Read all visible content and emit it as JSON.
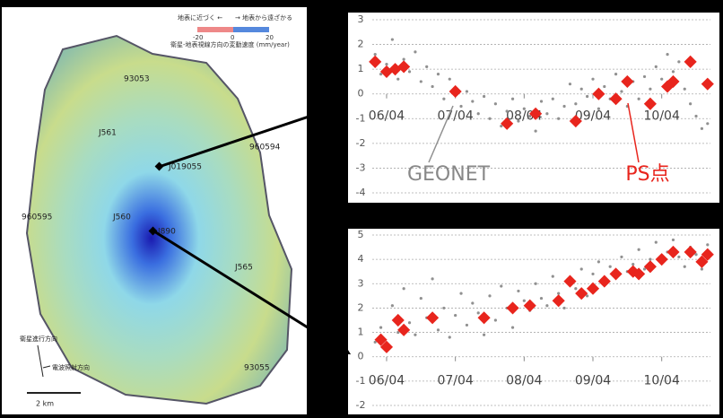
{
  "map": {
    "legend_left": "地表に近づく ←",
    "legend_right": "→ 地表から遠ざかる",
    "scale_min": "-20",
    "scale_mid": "0",
    "scale_max": "20",
    "legend_caption": "衛星-地表視線方向の変動速度 (mm/year)",
    "stations": [
      "93053",
      "J561",
      "960594",
      "J019055",
      "960595",
      "J560",
      "J890",
      "J565",
      "93055"
    ],
    "flight_direction": "衛星進行方向",
    "look_direction": "電波照射方向",
    "scale_bar": "2 km"
  },
  "chart_data": [
    {
      "type": "scatter",
      "xlim": [
        -2.5,
        56.5
      ],
      "ylim": [
        -4,
        3
      ],
      "xticks": [
        {
          "value": 0,
          "label": "06/04"
        },
        {
          "value": 12,
          "label": "07/04"
        },
        {
          "value": 24,
          "label": "08/04"
        },
        {
          "value": 36,
          "label": "09/04"
        },
        {
          "value": 48,
          "label": "10/04"
        }
      ],
      "yticks": [
        -4,
        -3,
        -2,
        -1,
        0,
        1,
        2,
        3
      ],
      "grid": true,
      "series": [
        {
          "name": "GEONET",
          "color": "#909090",
          "x": [
            -2,
            -1,
            0,
            1,
            2,
            3,
            4,
            5,
            6,
            7,
            8,
            9,
            10,
            11,
            12,
            13,
            14,
            15,
            16,
            17,
            18,
            19,
            20,
            21,
            22,
            23,
            24,
            25,
            26,
            27,
            28,
            29,
            30,
            31,
            32,
            33,
            34,
            35,
            36,
            37,
            38,
            39,
            40,
            41,
            42,
            43,
            44,
            45,
            46,
            47,
            48,
            49,
            50,
            51,
            52,
            53,
            54,
            55,
            56
          ],
          "values": [
            1.6,
            0.8,
            1.2,
            2.2,
            0.6,
            1.4,
            0.9,
            1.7,
            0.5,
            1.1,
            0.3,
            0.8,
            -0.2,
            0.6,
            0.2,
            -0.5,
            0.1,
            -0.3,
            -0.8,
            -0.1,
            -1.0,
            -0.4,
            -1.3,
            -0.7,
            -0.2,
            -1.1,
            -0.6,
            -0.9,
            -1.5,
            -0.3,
            -0.8,
            -0.2,
            -1.0,
            -0.5,
            0.4,
            -0.4,
            0.2,
            -0.1,
            0.6,
            -0.6,
            0.3,
            -0.2,
            0.8,
            0.1,
            -0.5,
            0.5,
            -0.2,
            0.7,
            0.2,
            1.1,
            0.6,
            1.6,
            0.9,
            1.3,
            0.2,
            -0.4,
            -0.9,
            -1.4,
            -1.2
          ]
        },
        {
          "name": "PS点",
          "color": "#e8251d",
          "x": [
            -2,
            0,
            1.5,
            3,
            12,
            21,
            26,
            33,
            37,
            40,
            42,
            46,
            49,
            50,
            53,
            56
          ],
          "values": [
            1.3,
            0.9,
            1.0,
            1.1,
            0.1,
            -1.2,
            -0.8,
            -1.1,
            0,
            -0.2,
            0.5,
            -0.4,
            0.3,
            0.5,
            1.3,
            0.4
          ]
        }
      ]
    },
    {
      "type": "scatter",
      "xlim": [
        -2.5,
        56.5
      ],
      "ylim": [
        -2,
        5
      ],
      "xticks": [
        {
          "value": 0,
          "label": "06/04"
        },
        {
          "value": 12,
          "label": "07/04"
        },
        {
          "value": 24,
          "label": "08/04"
        },
        {
          "value": 36,
          "label": "09/04"
        },
        {
          "value": 48,
          "label": "10/04"
        }
      ],
      "yticks": [
        -2,
        -1,
        0,
        1,
        2,
        3,
        4,
        5
      ],
      "grid": true,
      "series": [
        {
          "color": "#909090",
          "x": [
            -2,
            -1,
            0,
            1,
            2,
            3,
            4,
            5,
            6,
            7,
            8,
            9,
            10,
            11,
            12,
            13,
            14,
            15,
            16,
            17,
            18,
            19,
            20,
            21,
            22,
            23,
            24,
            25,
            26,
            27,
            28,
            29,
            30,
            31,
            32,
            33,
            34,
            35,
            36,
            37,
            38,
            39,
            40,
            41,
            42,
            43,
            44,
            45,
            46,
            47,
            48,
            49,
            50,
            51,
            52,
            53,
            54,
            55,
            56
          ],
          "values": [
            0.6,
            1.2,
            0.3,
            2.1,
            1.0,
            2.8,
            1.4,
            0.9,
            2.4,
            1.6,
            3.2,
            1.1,
            2.0,
            0.8,
            1.7,
            2.6,
            1.3,
            2.2,
            1.8,
            0.9,
            2.5,
            1.5,
            2.9,
            2.0,
            1.2,
            2.7,
            2.3,
            1.9,
            3.0,
            2.4,
            2.1,
            3.3,
            2.6,
            2.0,
            3.1,
            2.8,
            3.6,
            2.5,
            3.4,
            3.9,
            3.0,
            3.7,
            3.3,
            4.1,
            3.5,
            3.8,
            4.4,
            3.6,
            4.0,
            4.7,
            3.9,
            4.3,
            4.8,
            4.1,
            3.7,
            4.5,
            4.2,
            3.6,
            4.6
          ]
        },
        {
          "color": "#e8251d",
          "x": [
            -1,
            0,
            2,
            3,
            8,
            17,
            22,
            25,
            30,
            32,
            34,
            36,
            38,
            40,
            43,
            44,
            46,
            48,
            50,
            53,
            55,
            56
          ],
          "values": [
            0.7,
            0.4,
            1.5,
            1.1,
            1.6,
            1.6,
            2.0,
            2.1,
            2.3,
            3.1,
            2.6,
            2.8,
            3.1,
            3.4,
            3.5,
            3.4,
            3.7,
            4.0,
            4.3,
            4.3,
            3.9,
            4.2
          ]
        }
      ]
    }
  ]
}
